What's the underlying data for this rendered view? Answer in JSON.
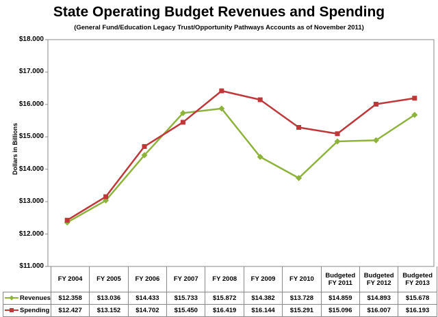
{
  "chart_data": {
    "type": "line",
    "title": "State Operating Budget Revenues and Spending",
    "subtitle": "(General Fund/Education Legacy Trust/Opportunity Pathways Accounts as of November 2011)",
    "ylabel": "Dollars in Billions",
    "xlabel": "",
    "ylim": [
      11,
      18
    ],
    "yticks": [
      {
        "value": 18,
        "label": "$18.000"
      },
      {
        "value": 17,
        "label": "$17.000"
      },
      {
        "value": 16,
        "label": "$16.000"
      },
      {
        "value": 15,
        "label": "$15.000"
      },
      {
        "value": 14,
        "label": "$14.000"
      },
      {
        "value": 13,
        "label": "$13.000"
      },
      {
        "value": 12,
        "label": "$12.000"
      },
      {
        "value": 11,
        "label": "$11.000"
      }
    ],
    "categories": [
      [
        "FY 2004"
      ],
      [
        "FY 2005"
      ],
      [
        "FY 2006"
      ],
      [
        "FY 2007"
      ],
      [
        "FY 2008"
      ],
      [
        "FY 2009"
      ],
      [
        "FY 2010"
      ],
      [
        "Budgeted",
        "FY 2011"
      ],
      [
        "Budgeted",
        "FY 2012"
      ],
      [
        "Budgeted",
        "FY 2013"
      ]
    ],
    "series": [
      {
        "name": "Revenues",
        "color": "#8db33a",
        "marker": "diamond",
        "values": [
          12.358,
          13.036,
          14.433,
          15.733,
          15.872,
          14.382,
          13.728,
          14.859,
          14.893,
          15.678
        ],
        "labels": [
          "$12.358",
          "$13.036",
          "$14.433",
          "$15.733",
          "$15.872",
          "$14.382",
          "$13.728",
          "$14.859",
          "$14.893",
          "$15.678"
        ]
      },
      {
        "name": "Spending",
        "color": "#c0373a",
        "marker": "square",
        "values": [
          12.427,
          13.152,
          14.702,
          15.45,
          16.419,
          16.144,
          15.291,
          15.096,
          16.007,
          16.193
        ],
        "labels": [
          "$12.427",
          "$13.152",
          "$14.702",
          "$15.450",
          "$16.419",
          "$16.144",
          "$15.291",
          "$15.096",
          "$16.007",
          "$16.193"
        ]
      }
    ],
    "grid": false,
    "legend": "data-table"
  }
}
